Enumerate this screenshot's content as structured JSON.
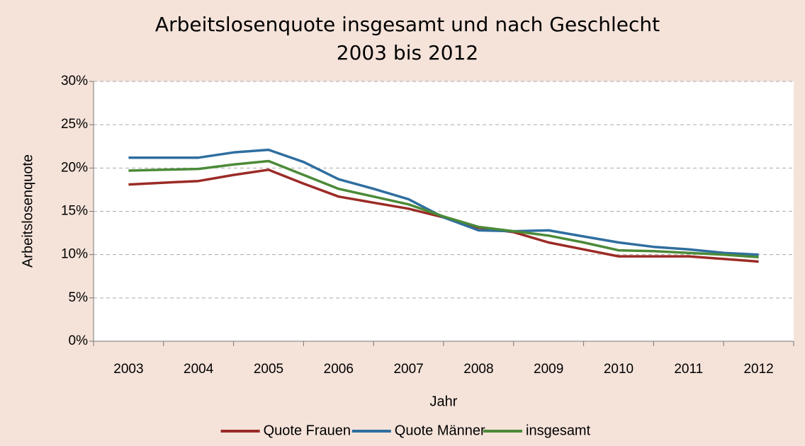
{
  "chart_data": {
    "type": "line",
    "title": "Arbeitslosenquote insgesamt und nach Geschlecht",
    "subtitle": "2003 bis 2012",
    "x_label": "Jahr",
    "y_label": "Arbeitslosenquote",
    "categories": [
      "2003",
      null,
      "2004",
      null,
      "2005",
      null,
      "2006",
      null,
      "2007",
      null,
      "2008",
      null,
      "2009",
      null,
      "2010",
      null,
      "2011",
      null,
      "2012"
    ],
    "series": [
      {
        "name": "Quote Frauen",
        "color": "#9b2b26",
        "values": [
          18.1,
          18.3,
          18.5,
          19.2,
          19.8,
          18.2,
          16.7,
          16.0,
          15.3,
          14.3,
          13.1,
          12.6,
          11.4,
          10.6,
          9.8,
          9.8,
          9.8,
          9.5,
          9.2
        ]
      },
      {
        "name": "Quote Männer",
        "color": "#2f6e9f",
        "values": [
          21.2,
          21.2,
          21.2,
          21.8,
          22.1,
          20.7,
          18.7,
          17.6,
          16.4,
          14.3,
          12.8,
          12.7,
          12.8,
          12.1,
          11.4,
          10.9,
          10.6,
          10.2,
          10.0
        ]
      },
      {
        "name": "insgesamt",
        "color": "#4b8a38",
        "values": [
          19.7,
          19.8,
          19.9,
          20.4,
          20.8,
          19.2,
          17.6,
          16.7,
          15.8,
          14.4,
          13.2,
          12.7,
          12.2,
          11.4,
          10.5,
          10.4,
          10.2,
          10.0,
          9.7
        ]
      }
    ],
    "ylim": [
      0,
      30
    ],
    "yticks": [
      {
        "value": 0,
        "label": "0%"
      },
      {
        "value": 5,
        "label": "5%"
      },
      {
        "value": 10,
        "label": "10%"
      },
      {
        "value": 15,
        "label": "15%"
      },
      {
        "value": 20,
        "label": "20%"
      },
      {
        "value": 25,
        "label": "25%"
      },
      {
        "value": 30,
        "label": "30%"
      }
    ],
    "grid": true,
    "legend": "bottom"
  }
}
